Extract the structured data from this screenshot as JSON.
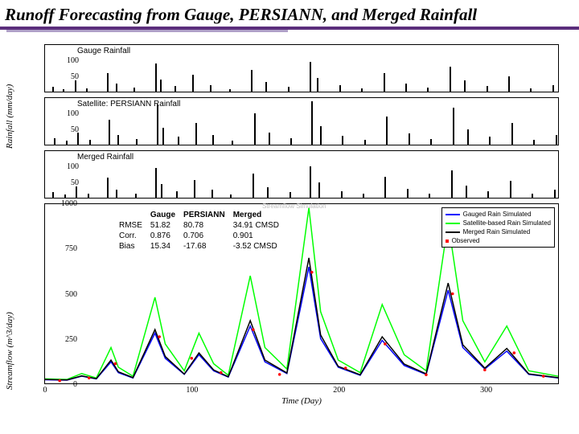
{
  "title": "Runoff Forecasting from Gauge, PERSIANN, and Merged Rainfall",
  "title_color": "#000000",
  "accent_line_color": "#5b2e7c",
  "ylabel_rain": "Rainfall (mm/day)",
  "ylabel_flow": "Streamflow (m^3/day)",
  "x_label": "Time (Day)",
  "rain_panels": [
    {
      "name": "Gauge Rainfall",
      "key": "gauge"
    },
    {
      "name": "Satellite: PERSIANN Rainfall",
      "key": "persiann"
    },
    {
      "name": "Merged Rainfall",
      "key": "merged"
    }
  ],
  "rain_y_ticks": [
    100,
    50
  ],
  "rain_y_max": 150,
  "rain_x_domain": [
    0,
    350
  ],
  "rain_bars": {
    "gauge": [
      [
        5,
        15
      ],
      [
        12,
        8
      ],
      [
        20,
        35
      ],
      [
        28,
        10
      ],
      [
        42,
        60
      ],
      [
        48,
        25
      ],
      [
        60,
        12
      ],
      [
        75,
        90
      ],
      [
        78,
        40
      ],
      [
        88,
        18
      ],
      [
        100,
        55
      ],
      [
        112,
        22
      ],
      [
        125,
        8
      ],
      [
        140,
        70
      ],
      [
        150,
        30
      ],
      [
        165,
        15
      ],
      [
        180,
        95
      ],
      [
        185,
        45
      ],
      [
        200,
        20
      ],
      [
        215,
        10
      ],
      [
        230,
        60
      ],
      [
        245,
        25
      ],
      [
        260,
        12
      ],
      [
        275,
        80
      ],
      [
        285,
        35
      ],
      [
        300,
        18
      ],
      [
        315,
        50
      ],
      [
        330,
        10
      ],
      [
        345,
        22
      ]
    ],
    "persiann": [
      [
        6,
        20
      ],
      [
        14,
        12
      ],
      [
        22,
        40
      ],
      [
        30,
        15
      ],
      [
        43,
        80
      ],
      [
        49,
        30
      ],
      [
        62,
        18
      ],
      [
        76,
        130
      ],
      [
        80,
        55
      ],
      [
        90,
        25
      ],
      [
        102,
        70
      ],
      [
        114,
        30
      ],
      [
        127,
        12
      ],
      [
        142,
        100
      ],
      [
        152,
        40
      ],
      [
        167,
        20
      ],
      [
        181,
        140
      ],
      [
        187,
        60
      ],
      [
        202,
        28
      ],
      [
        217,
        15
      ],
      [
        232,
        90
      ],
      [
        247,
        35
      ],
      [
        262,
        18
      ],
      [
        277,
        120
      ],
      [
        287,
        50
      ],
      [
        302,
        25
      ],
      [
        317,
        70
      ],
      [
        332,
        15
      ],
      [
        347,
        30
      ]
    ],
    "merged": [
      [
        5,
        17
      ],
      [
        13,
        10
      ],
      [
        21,
        37
      ],
      [
        29,
        12
      ],
      [
        42,
        65
      ],
      [
        48,
        27
      ],
      [
        61,
        14
      ],
      [
        75,
        95
      ],
      [
        79,
        45
      ],
      [
        89,
        20
      ],
      [
        101,
        58
      ],
      [
        113,
        25
      ],
      [
        126,
        10
      ],
      [
        141,
        78
      ],
      [
        151,
        33
      ],
      [
        166,
        17
      ],
      [
        180,
        100
      ],
      [
        186,
        50
      ],
      [
        201,
        22
      ],
      [
        216,
        12
      ],
      [
        231,
        68
      ],
      [
        246,
        28
      ],
      [
        261,
        14
      ],
      [
        276,
        88
      ],
      [
        286,
        40
      ],
      [
        301,
        20
      ],
      [
        316,
        55
      ],
      [
        331,
        12
      ],
      [
        346,
        25
      ]
    ]
  },
  "flow_y_ticks": [
    1000,
    750,
    500,
    250,
    0
  ],
  "flow_y_max": 1000,
  "flow_x_ticks": [
    0,
    100,
    200,
    300
  ],
  "flow_x_domain": [
    0,
    350
  ],
  "flow_series": {
    "gauge": {
      "color": "#0000ff",
      "width": 1.5,
      "points": [
        [
          0,
          20
        ],
        [
          15,
          18
        ],
        [
          25,
          40
        ],
        [
          35,
          25
        ],
        [
          45,
          120
        ],
        [
          50,
          60
        ],
        [
          60,
          30
        ],
        [
          75,
          280
        ],
        [
          82,
          140
        ],
        [
          95,
          50
        ],
        [
          105,
          160
        ],
        [
          115,
          70
        ],
        [
          125,
          35
        ],
        [
          140,
          320
        ],
        [
          150,
          120
        ],
        [
          165,
          55
        ],
        [
          180,
          650
        ],
        [
          188,
          250
        ],
        [
          200,
          90
        ],
        [
          215,
          45
        ],
        [
          230,
          240
        ],
        [
          245,
          100
        ],
        [
          260,
          50
        ],
        [
          275,
          520
        ],
        [
          285,
          200
        ],
        [
          300,
          80
        ],
        [
          315,
          180
        ],
        [
          330,
          50
        ],
        [
          350,
          30
        ]
      ]
    },
    "persiann": {
      "color": "#00ff00",
      "width": 1.5,
      "points": [
        [
          0,
          25
        ],
        [
          15,
          22
        ],
        [
          25,
          55
        ],
        [
          35,
          30
        ],
        [
          45,
          200
        ],
        [
          50,
          90
        ],
        [
          60,
          40
        ],
        [
          75,
          480
        ],
        [
          82,
          220
        ],
        [
          95,
          70
        ],
        [
          105,
          280
        ],
        [
          115,
          110
        ],
        [
          125,
          45
        ],
        [
          140,
          600
        ],
        [
          150,
          200
        ],
        [
          165,
          80
        ],
        [
          180,
          980
        ],
        [
          188,
          400
        ],
        [
          200,
          130
        ],
        [
          215,
          60
        ],
        [
          230,
          440
        ],
        [
          245,
          160
        ],
        [
          260,
          70
        ],
        [
          275,
          900
        ],
        [
          285,
          350
        ],
        [
          300,
          120
        ],
        [
          315,
          320
        ],
        [
          330,
          70
        ],
        [
          350,
          40
        ]
      ]
    },
    "merged": {
      "color": "#000000",
      "width": 1.5,
      "points": [
        [
          0,
          22
        ],
        [
          15,
          19
        ],
        [
          25,
          42
        ],
        [
          35,
          26
        ],
        [
          45,
          130
        ],
        [
          50,
          65
        ],
        [
          60,
          32
        ],
        [
          75,
          300
        ],
        [
          82,
          150
        ],
        [
          95,
          52
        ],
        [
          105,
          170
        ],
        [
          115,
          75
        ],
        [
          125,
          37
        ],
        [
          140,
          350
        ],
        [
          150,
          130
        ],
        [
          165,
          58
        ],
        [
          180,
          700
        ],
        [
          188,
          270
        ],
        [
          200,
          95
        ],
        [
          215,
          48
        ],
        [
          230,
          260
        ],
        [
          245,
          108
        ],
        [
          260,
          53
        ],
        [
          275,
          560
        ],
        [
          285,
          215
        ],
        [
          300,
          85
        ],
        [
          315,
          195
        ],
        [
          330,
          53
        ],
        [
          350,
          32
        ]
      ]
    },
    "observed": {
      "color": "#ff0000",
      "marker": "dot",
      "points": [
        [
          10,
          15
        ],
        [
          30,
          30
        ],
        [
          48,
          110
        ],
        [
          78,
          260
        ],
        [
          100,
          140
        ],
        [
          120,
          60
        ],
        [
          142,
          300
        ],
        [
          160,
          50
        ],
        [
          182,
          620
        ],
        [
          205,
          85
        ],
        [
          232,
          220
        ],
        [
          260,
          48
        ],
        [
          278,
          500
        ],
        [
          300,
          75
        ],
        [
          320,
          170
        ],
        [
          340,
          40
        ]
      ]
    }
  },
  "legend": [
    {
      "label": "Gauged Rain Simulated",
      "color": "#0000ff",
      "type": "line"
    },
    {
      "label": "Satellite-based Rain Simulated",
      "color": "#00ff00",
      "type": "line"
    },
    {
      "label": "Merged Rain Simulated",
      "color": "#000000",
      "type": "line"
    },
    {
      "label": "Observed",
      "color": "#ff0000",
      "type": "dot"
    }
  ],
  "stats": {
    "columns": [
      "",
      "Gauge",
      "PERSIANN",
      "Merged"
    ],
    "rows": [
      [
        "RMSE",
        "51.82",
        "80.78",
        "34.91 CMSD"
      ],
      [
        "Corr.",
        "0.876",
        "0.706",
        "0.901"
      ],
      [
        "Bias",
        "15.34",
        "-17.68",
        "-3.52 CMSD"
      ]
    ]
  },
  "ghost_upper_title": "Streamflow Simulation",
  "ghost_ylabel": "Streamflow (m3/day)"
}
